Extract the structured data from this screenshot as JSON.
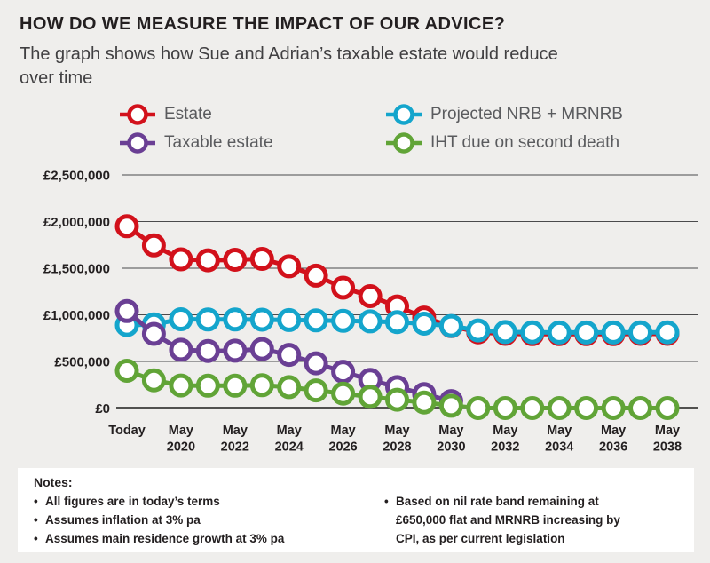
{
  "page": {
    "background": "#efeeec",
    "panel_background": "#ffffff"
  },
  "header": {
    "title": "HOW DO WE MEASURE THE IMPACT OF OUR ADVICE?",
    "subtitle_lines": [
      "The graph shows how Sue and Adrian’s taxable estate would reduce",
      "over time"
    ]
  },
  "legend": {
    "items": [
      {
        "label": "Estate",
        "color": "#d2111b"
      },
      {
        "label": "Taxable estate",
        "color": "#6a3f94"
      },
      {
        "label": "Projected NRB + MRNRB",
        "color": "#14a5cc"
      },
      {
        "label": "IHT due on second death",
        "color": "#61a437"
      }
    ]
  },
  "chart_data": {
    "type": "line",
    "title": "Taxable estate reduction over time",
    "x_axis": {
      "note": "21 yearly data slots: slot 0 = Today, slots 2..20 = May 2020..May 2038; labels shown every 2 years",
      "ticks": [
        {
          "label": "Today",
          "slot": 0
        },
        {
          "label": "May 2020",
          "slot": 2
        },
        {
          "label": "May 2022",
          "slot": 4
        },
        {
          "label": "May 2024",
          "slot": 6
        },
        {
          "label": "May 2026",
          "slot": 8
        },
        {
          "label": "May 2028",
          "slot": 10
        },
        {
          "label": "May 2030",
          "slot": 12
        },
        {
          "label": "May 2032",
          "slot": 14
        },
        {
          "label": "May 2034",
          "slot": 16
        },
        {
          "label": "May 2036",
          "slot": 18
        },
        {
          "label": "May 2038",
          "slot": 20
        }
      ]
    },
    "y_axis": {
      "range": [
        0,
        2500000
      ],
      "grid": "horizontal",
      "ticks": [
        {
          "label": "£2,500,000",
          "value": 2500000
        },
        {
          "label": "£2,000,000",
          "value": 2000000
        },
        {
          "label": "£1,500,000",
          "value": 1500000
        },
        {
          "label": "£1,000,000",
          "value": 1000000
        },
        {
          "label": "£500,000",
          "value": 500000
        },
        {
          "label": "£0",
          "value": 0
        }
      ]
    },
    "series": [
      {
        "name": "Estate",
        "color": "#d2111b",
        "values": [
          1950000,
          1745000,
          1595000,
          1585000,
          1590000,
          1600000,
          1520000,
          1420000,
          1290000,
          1200000,
          1090000,
          970000,
          878000,
          812000,
          795000,
          792000,
          792000,
          792000,
          792000,
          795000,
          795000
        ]
      },
      {
        "name": "Projected NRB + MRNRB",
        "color": "#14a5cc",
        "values": [
          890000,
          898000,
          952000,
          950000,
          950000,
          948000,
          944000,
          940000,
          935000,
          930000,
          922000,
          905000,
          880000,
          832000,
          815000,
          812000,
          810000,
          810000,
          810000,
          812000,
          812000
        ]
      },
      {
        "name": "Taxable estate",
        "color": "#6a3f94",
        "ends_at": "May 2030",
        "values": [
          1040000,
          795000,
          625000,
          612000,
          615000,
          632000,
          570000,
          480000,
          390000,
          302000,
          225000,
          150000,
          75000
        ]
      },
      {
        "name": "IHT due on second death",
        "color": "#61a437",
        "values": [
          400000,
          298000,
          242000,
          240000,
          240000,
          245000,
          225000,
          190000,
          155000,
          121000,
          90000,
          60000,
          25000,
          0,
          0,
          0,
          0,
          0,
          0,
          0,
          0
        ]
      }
    ],
    "legend_position": "top"
  },
  "notes": {
    "heading": "Notes:",
    "left_bullets": [
      {
        "lines": [
          "All figures are in today’s terms"
        ]
      },
      {
        "lines": [
          "Assumes inflation at 3% pa"
        ]
      },
      {
        "lines": [
          "Assumes main residence growth at 3% pa"
        ]
      }
    ],
    "right_bullets": [
      {
        "lines": [
          "Based on nil rate band remaining at",
          "£650,000 flat and MRNRB increasing by",
          "CPI, as per current legislation"
        ]
      }
    ]
  },
  "style_colors": {
    "grid_line": "#4a4a4c",
    "zero_axis": "#1d1d1b",
    "axis_text": "#231f20",
    "legend_text": "#5a5b5e",
    "subtitle_text": "#414042"
  }
}
